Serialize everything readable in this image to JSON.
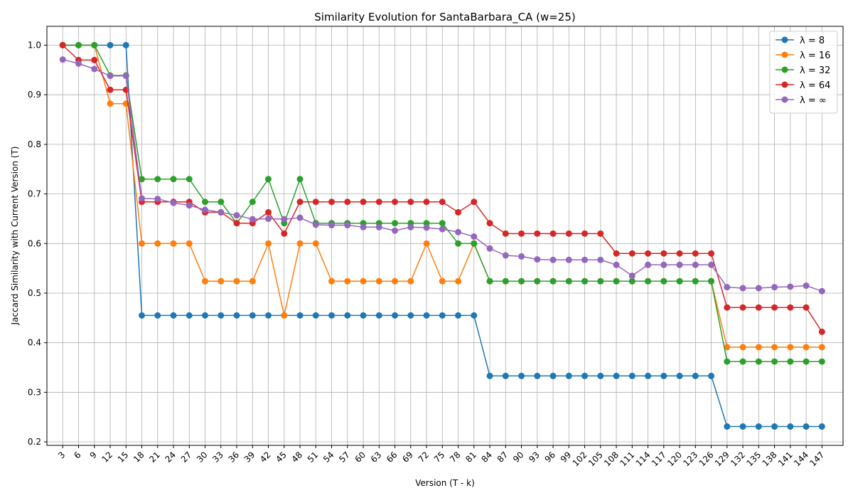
{
  "chart_data": {
    "type": "line",
    "title": "Similarity Evolution for SantaBarbara_CA (w=25)",
    "xlabel": "Version (T - k)",
    "ylabel": "Jaccard Similarity with Current Version (T)",
    "grid": true,
    "legend_position": "top-right",
    "xlim": [
      0,
      151
    ],
    "ylim": [
      0.193,
      1.038
    ],
    "yticks": [
      0.2,
      0.3,
      0.4,
      0.5,
      0.6,
      0.7,
      0.8,
      0.9,
      1.0
    ],
    "x": [
      3,
      6,
      9,
      12,
      15,
      18,
      21,
      24,
      27,
      30,
      33,
      36,
      39,
      42,
      45,
      48,
      51,
      54,
      57,
      60,
      63,
      66,
      69,
      72,
      75,
      78,
      81,
      84,
      87,
      90,
      93,
      96,
      99,
      102,
      105,
      108,
      111,
      114,
      117,
      120,
      123,
      126,
      129,
      132,
      135,
      138,
      141,
      144,
      147
    ],
    "series": [
      {
        "name": "λ = 8",
        "color": "#1f77b4",
        "values": [
          1.0,
          1.0,
          1.0,
          1.0,
          1.0,
          0.455,
          0.455,
          0.455,
          0.455,
          0.455,
          0.455,
          0.455,
          0.455,
          0.455,
          0.455,
          0.455,
          0.455,
          0.455,
          0.455,
          0.455,
          0.455,
          0.455,
          0.455,
          0.455,
          0.455,
          0.455,
          0.455,
          0.333,
          0.333,
          0.333,
          0.333,
          0.333,
          0.333,
          0.333,
          0.333,
          0.333,
          0.333,
          0.333,
          0.333,
          0.333,
          0.333,
          0.333,
          0.231,
          0.231,
          0.231,
          0.231,
          0.231,
          0.231,
          0.231
        ]
      },
      {
        "name": "λ = 16",
        "color": "#ff7f0e",
        "values": [
          1.0,
          1.0,
          1.0,
          0.882,
          0.882,
          0.6,
          0.6,
          0.6,
          0.6,
          0.524,
          0.524,
          0.524,
          0.524,
          0.6,
          0.455,
          0.6,
          0.6,
          0.524,
          0.524,
          0.524,
          0.524,
          0.524,
          0.524,
          0.6,
          0.524,
          0.524,
          0.6,
          0.524,
          0.524,
          0.524,
          0.524,
          0.524,
          0.524,
          0.524,
          0.524,
          0.524,
          0.524,
          0.524,
          0.524,
          0.524,
          0.524,
          0.524,
          0.391,
          0.391,
          0.391,
          0.391,
          0.391,
          0.391,
          0.391
        ]
      },
      {
        "name": "λ = 32",
        "color": "#2ca02c",
        "values": [
          1.0,
          1.0,
          1.0,
          0.939,
          0.939,
          0.73,
          0.73,
          0.73,
          0.73,
          0.684,
          0.684,
          0.641,
          0.684,
          0.73,
          0.641,
          0.73,
          0.641,
          0.641,
          0.641,
          0.641,
          0.641,
          0.641,
          0.641,
          0.641,
          0.641,
          0.6,
          0.6,
          0.524,
          0.524,
          0.524,
          0.524,
          0.524,
          0.524,
          0.524,
          0.524,
          0.524,
          0.524,
          0.524,
          0.524,
          0.524,
          0.524,
          0.524,
          0.362,
          0.362,
          0.362,
          0.362,
          0.362,
          0.362,
          0.362
        ]
      },
      {
        "name": "λ = 64",
        "color": "#d62728",
        "values": [
          1.0,
          0.97,
          0.97,
          0.91,
          0.91,
          0.684,
          0.684,
          0.684,
          0.684,
          0.663,
          0.663,
          0.641,
          0.641,
          0.663,
          0.62,
          0.684,
          0.684,
          0.684,
          0.684,
          0.684,
          0.684,
          0.684,
          0.684,
          0.684,
          0.684,
          0.663,
          0.684,
          0.641,
          0.62,
          0.62,
          0.62,
          0.62,
          0.62,
          0.62,
          0.62,
          0.58,
          0.58,
          0.58,
          0.58,
          0.58,
          0.58,
          0.58,
          0.471,
          0.471,
          0.471,
          0.471,
          0.471,
          0.471,
          0.422
        ]
      },
      {
        "name": "λ = ∞",
        "color": "#9467bd",
        "values": [
          0.971,
          0.963,
          0.952,
          0.938,
          0.938,
          0.691,
          0.69,
          0.682,
          0.677,
          0.668,
          0.663,
          0.657,
          0.649,
          0.65,
          0.649,
          0.652,
          0.638,
          0.637,
          0.637,
          0.633,
          0.633,
          0.626,
          0.633,
          0.632,
          0.629,
          0.623,
          0.614,
          0.59,
          0.576,
          0.574,
          0.568,
          0.567,
          0.567,
          0.567,
          0.567,
          0.557,
          0.535,
          0.557,
          0.557,
          0.557,
          0.557,
          0.557,
          0.512,
          0.51,
          0.51,
          0.512,
          0.513,
          0.515,
          0.504
        ]
      }
    ]
  }
}
